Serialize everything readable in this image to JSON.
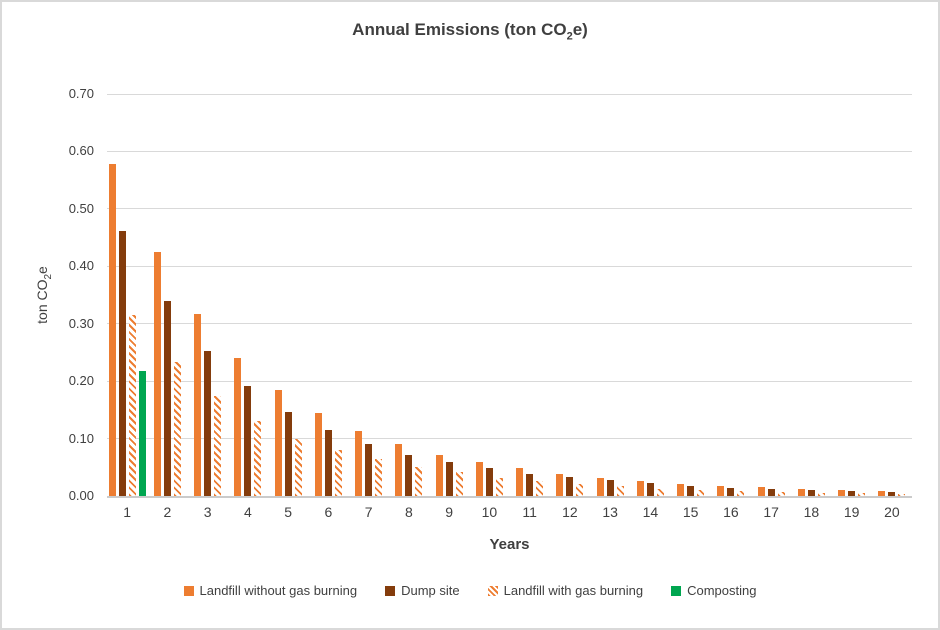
{
  "title": {
    "prefix": "Annual Emissions (ton CO",
    "sub": "2",
    "suffix": "e)"
  },
  "axes": {
    "y_title": {
      "prefix": "ton CO",
      "sub": "2",
      "suffix": "e"
    },
    "x_title": "Years"
  },
  "colors": {
    "orange": "#ED7D31",
    "brown": "#843C0C",
    "green": "#00A650",
    "gridline": "#D9D9D9",
    "axis_line": "#CBCBCB",
    "text": "#404040",
    "border": "#D9D9D9"
  },
  "chart_data": {
    "type": "bar",
    "title": "Annual Emissions (ton CO2e)",
    "xlabel": "Years",
    "ylabel": "ton CO2e",
    "ylim": [
      0,
      0.7
    ],
    "ytick_labels": [
      "0.00",
      "0.10",
      "0.20",
      "0.30",
      "0.40",
      "0.50",
      "0.60",
      "0.70"
    ],
    "grid": "horizontal",
    "legend_position": "bottom",
    "categories": [
      "1",
      "2",
      "3",
      "4",
      "5",
      "6",
      "7",
      "8",
      "9",
      "10",
      "11",
      "12",
      "13",
      "14",
      "15",
      "16",
      "17",
      "18",
      "19",
      "20"
    ],
    "series": [
      {
        "name": "Landfill without gas burning",
        "color": "#ED7D31",
        "pattern": "solid",
        "values": [
          0.578,
          0.425,
          0.317,
          0.24,
          0.185,
          0.145,
          0.113,
          0.091,
          0.072,
          0.059,
          0.048,
          0.039,
          0.032,
          0.026,
          0.021,
          0.017,
          0.015,
          0.012,
          0.01,
          0.008
        ]
      },
      {
        "name": "Dump site",
        "color": "#843C0C",
        "pattern": "solid",
        "values": [
          0.462,
          0.34,
          0.253,
          0.191,
          0.146,
          0.115,
          0.091,
          0.072,
          0.059,
          0.048,
          0.039,
          0.033,
          0.027,
          0.022,
          0.018,
          0.014,
          0.012,
          0.01,
          0.008,
          0.007
        ]
      },
      {
        "name": "Landfill with gas burning",
        "color": "#ED7D31",
        "pattern": "hatched",
        "values": [
          0.315,
          0.233,
          0.174,
          0.13,
          0.1,
          0.08,
          0.064,
          0.051,
          0.041,
          0.032,
          0.026,
          0.021,
          0.017,
          0.013,
          0.011,
          0.009,
          0.007,
          0.006,
          0.005,
          0.004
        ]
      },
      {
        "name": "Composting",
        "color": "#00A650",
        "pattern": "solid",
        "values": [
          0.217,
          0,
          0,
          0,
          0,
          0,
          0,
          0,
          0,
          0,
          0,
          0,
          0,
          0,
          0,
          0,
          0,
          0,
          0,
          0
        ]
      }
    ]
  }
}
